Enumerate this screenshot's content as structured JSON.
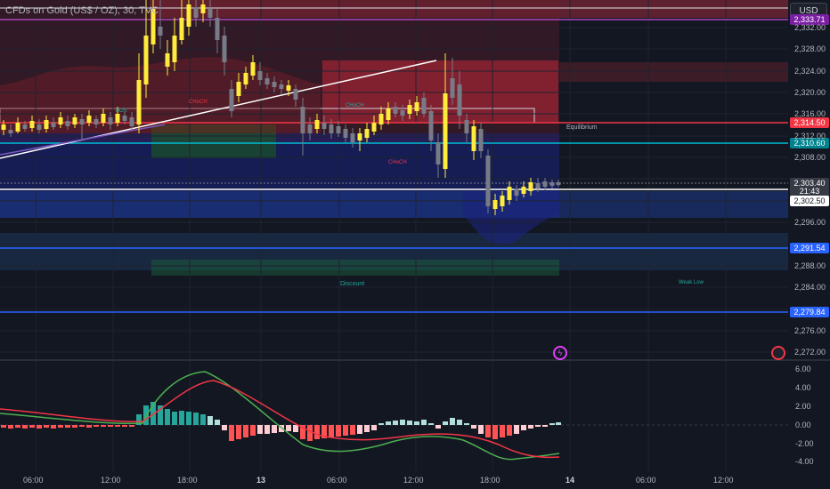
{
  "header": {
    "title": "CFDs on Gold (US$ / OZ), 30, TVC",
    "currency_button": "USD"
  },
  "colors": {
    "background": "#131722",
    "bull": "#ffeb3b",
    "bear": "#787b86",
    "macd_line": "#4caf50",
    "signal_line": "#f23645",
    "hist_pos_strong": "#26a69a",
    "hist_pos_weak": "#b2dfdb",
    "hist_neg_strong": "#ff5252",
    "hist_neg_weak": "#ffcdd2"
  },
  "price_axis": {
    "labels": [
      "2,332.00",
      "2,328.00",
      "2,324.00",
      "2,320.00",
      "2,316.00",
      "2,312.00",
      "2,308.00",
      "2,296.00",
      "2,288.00",
      "2,284.00",
      "2,276.00",
      "2,272.00"
    ]
  },
  "price_tags": [
    {
      "name": "price-tag-upper-level",
      "value": "2,333.71",
      "color": "#7b1fa2"
    },
    {
      "name": "price-tag-red-level",
      "value": "2,314.50",
      "color": "#f23645"
    },
    {
      "name": "price-tag-cyan-level",
      "value": "2,310.60",
      "color": "#00838f"
    },
    {
      "name": "price-tag-current",
      "value": "2,303.40",
      "color": "#363a45"
    },
    {
      "name": "price-tag-countdown",
      "value": "21:43",
      "color": "#363a45"
    },
    {
      "name": "price-tag-white-level",
      "value": "2,302.50",
      "color": "#ffffff"
    },
    {
      "name": "price-tag-blue-level",
      "value": "2,291.54",
      "color": "#2962ff"
    },
    {
      "name": "price-tag-low-level",
      "value": "2,279.84",
      "color": "#2962ff"
    }
  ],
  "macd_axis": {
    "labels": [
      "6.00",
      "4.00",
      "2.00",
      "0.00",
      "-2.00",
      "-4.00"
    ]
  },
  "time_axis": {
    "labels": [
      "06:00",
      "12:00",
      "18:00",
      "13",
      "06:00",
      "12:00",
      "18:00",
      "14",
      "06:00",
      "12:00"
    ]
  },
  "annotations": {
    "equilibrium": "Equilibrium",
    "discount": "Discount",
    "weak_low": "Weak Low",
    "choch_labels": [
      "CHoCH",
      "CHoCH",
      "CHoCH"
    ],
    "bos_label": "BOS"
  }
}
